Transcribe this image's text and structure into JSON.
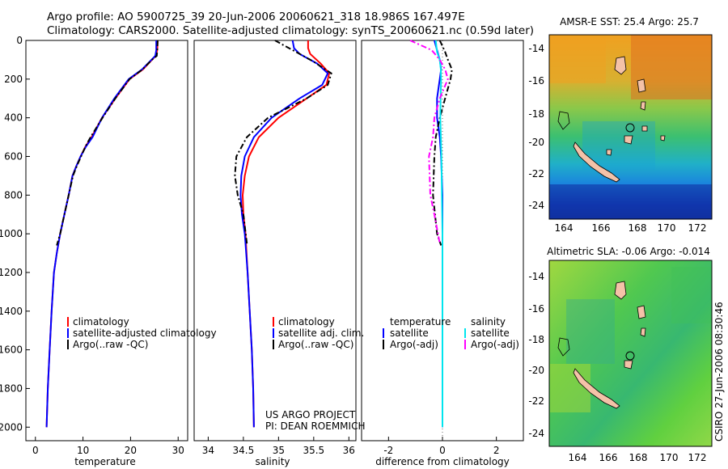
{
  "header": {
    "line1": "Argo profile: AO 5900725_39 20-Jun-2006 20060621_318 18.986S 167.497E",
    "line2": "Climatology: CARS2000. Satellite-adjusted climatology: synTS_20060621.nc (0.59d later)"
  },
  "credits": {
    "project": "US ARGO PROJECT",
    "pi": "PI: DEAN ROEMMICH"
  },
  "side_label": "CSIRO 27-Jun-2006 08:30:46",
  "colors": {
    "climatology": "#ff0000",
    "satellite": "#0000ff",
    "argo": "#000000",
    "sal_satellite": "#00e5ee",
    "sal_argo": "#ff00ff"
  },
  "chart_data": [
    {
      "type": "line",
      "id": "temperature",
      "xlabel": "temperature",
      "xlim": [
        -2,
        32
      ],
      "xticks": [
        0,
        10,
        20,
        30
      ],
      "ylim": [
        2070,
        0
      ],
      "yticks": [
        0,
        200,
        400,
        600,
        800,
        1000,
        1200,
        1400,
        1600,
        1800,
        2000
      ],
      "legend": [
        "climatology",
        "satellite-adjusted climatology",
        "Argo(..raw -QC)"
      ],
      "series": [
        {
          "name": "climatology",
          "color": "#ff0000",
          "x": [
            25.7,
            25.6,
            25.3,
            24.5,
            22.6,
            19.8,
            16.8,
            14.0,
            11.8,
            10.5,
            9.5,
            8.6,
            7.8,
            7.0,
            6.1,
            5.2,
            4.5,
            3.9,
            3.4,
            3.0,
            2.6,
            2.35
          ],
          "y": [
            0,
            50,
            80,
            100,
            150,
            200,
            300,
            400,
            500,
            550,
            600,
            650,
            700,
            800,
            900,
            1000,
            1100,
            1200,
            1400,
            1600,
            1800,
            2000
          ]
        },
        {
          "name": "satellite-adjusted climatology",
          "color": "#0000ff",
          "x": [
            25.4,
            25.4,
            25.2,
            24.4,
            22.4,
            19.6,
            16.6,
            14.0,
            12.0,
            10.6,
            9.5,
            8.6,
            7.8,
            7.0,
            6.1,
            5.2,
            4.5,
            3.9,
            3.4,
            3.0,
            2.6,
            2.35
          ],
          "y": [
            0,
            50,
            80,
            100,
            150,
            200,
            300,
            400,
            500,
            550,
            600,
            650,
            700,
            800,
            900,
            1000,
            1100,
            1200,
            1400,
            1600,
            1800,
            2000
          ]
        },
        {
          "name": "Argo(..raw -QC)",
          "color": "#000000",
          "dashed": true,
          "x": [
            25.7,
            25.6,
            25.5,
            24.5,
            22.5,
            19.8,
            16.8,
            14.1,
            11.6,
            10.5,
            9.6,
            8.7,
            7.9,
            7.0,
            6.1,
            5.2,
            4.5
          ],
          "y": [
            0,
            50,
            80,
            100,
            150,
            200,
            300,
            400,
            500,
            550,
            600,
            650,
            700,
            800,
            900,
            1000,
            1060
          ]
        }
      ]
    },
    {
      "type": "line",
      "id": "salinity",
      "xlabel": "salinity",
      "xlim": [
        33.8,
        36.1
      ],
      "xticks": [
        34,
        34.5,
        35,
        35.5,
        36
      ],
      "ylim": [
        2070,
        0
      ],
      "yticks": [],
      "legend": [
        "climatology",
        "satellite adj. clim.",
        "Argo(..raw -QC)"
      ],
      "series": [
        {
          "name": "climatology",
          "color": "#ff0000",
          "x": [
            35.42,
            35.42,
            35.45,
            35.6,
            35.72,
            35.68,
            35.4,
            35.0,
            34.72,
            34.58,
            34.52,
            34.49,
            34.5,
            34.53,
            34.56,
            34.59,
            34.62,
            34.64,
            34.65
          ],
          "y": [
            0,
            40,
            70,
            120,
            170,
            230,
            300,
            400,
            500,
            600,
            700,
            800,
            900,
            1000,
            1200,
            1400,
            1600,
            1800,
            2000
          ]
        },
        {
          "name": "satellite adj. clim.",
          "color": "#0000ff",
          "x": [
            35.2,
            35.22,
            35.3,
            35.55,
            35.7,
            35.62,
            35.3,
            34.9,
            34.65,
            34.52,
            34.47,
            34.46,
            34.48,
            34.52,
            34.56,
            34.59,
            34.62,
            34.64,
            34.65
          ],
          "y": [
            0,
            40,
            70,
            120,
            170,
            230,
            300,
            400,
            500,
            600,
            700,
            800,
            900,
            1000,
            1200,
            1400,
            1600,
            1800,
            2000
          ]
        },
        {
          "name": "Argo(..raw -QC)",
          "color": "#000000",
          "dashed": true,
          "x": [
            34.95,
            35.1,
            35.25,
            35.5,
            35.75,
            35.7,
            35.4,
            34.85,
            34.55,
            34.4,
            34.38,
            34.42,
            34.5,
            34.55
          ],
          "y": [
            0,
            30,
            60,
            110,
            170,
            230,
            300,
            400,
            500,
            600,
            700,
            800,
            900,
            1050
          ]
        }
      ]
    },
    {
      "type": "line",
      "id": "difference",
      "xlabel": "difference from climatology",
      "xlim": [
        -3,
        3
      ],
      "xticks": [
        -2,
        0,
        2
      ],
      "ylim": [
        2070,
        0
      ],
      "yticks": [],
      "legend_groups": [
        {
          "title": "temperature",
          "items": [
            "satellite",
            "Argo(-adj)"
          ]
        },
        {
          "title": "salinity",
          "items": [
            "satellite",
            "Argo(-adj)"
          ]
        }
      ],
      "series": [
        {
          "name": "temperature satellite",
          "color": "#0000ff",
          "x": [
            -0.3,
            -0.2,
            -0.1,
            -0.05,
            -0.1,
            -0.2,
            -0.2,
            -0.1,
            -0.05,
            0,
            0,
            0,
            0
          ],
          "y": [
            0,
            50,
            100,
            150,
            200,
            300,
            400,
            500,
            600,
            800,
            1000,
            1500,
            2000
          ]
        },
        {
          "name": "temperature Argo(-adj)",
          "color": "#000000",
          "dashed": true,
          "x": [
            -0.1,
            0.1,
            0.2,
            0.35,
            0.3,
            0.1,
            -0.1,
            -0.25,
            -0.3,
            -0.35,
            -0.2,
            -0.05
          ],
          "y": [
            0,
            60,
            100,
            150,
            200,
            300,
            400,
            500,
            600,
            800,
            1000,
            1060
          ]
        },
        {
          "name": "salinity satellite",
          "color": "#00e5ee",
          "x": [
            -0.25,
            -0.2,
            -0.1,
            -0.06,
            -0.05,
            -0.07,
            -0.08,
            -0.06,
            -0.04,
            -0.02,
            0,
            0
          ],
          "y": [
            0,
            60,
            100,
            150,
            200,
            300,
            400,
            500,
            600,
            800,
            1000,
            2000
          ]
        },
        {
          "name": "salinity Argo(-adj)",
          "color": "#ff00ff",
          "dashed": true,
          "x": [
            -1.2,
            -0.4,
            -0.1,
            0.1,
            0.2,
            -0.1,
            -0.3,
            -0.35,
            -0.5,
            -0.45,
            -0.3,
            -0.1
          ],
          "y": [
            0,
            50,
            100,
            150,
            200,
            300,
            400,
            500,
            600,
            800,
            900,
            1050
          ]
        }
      ]
    }
  ],
  "maps": [
    {
      "title": "AMSR-E SST: 25.4 Argo: 25.7",
      "xticks": [
        "164",
        "166",
        "168",
        "170",
        "172"
      ],
      "yticks": [
        "-14",
        "-16",
        "-18",
        "-20",
        "-22",
        "-24"
      ]
    },
    {
      "title": "Altimetric SLA: -0.06 Argo: -0.014",
      "xticks": [
        "164",
        "166",
        "168",
        "170",
        "172"
      ],
      "yticks": [
        "-14",
        "-16",
        "-18",
        "-20",
        "-22",
        "-24"
      ]
    }
  ]
}
